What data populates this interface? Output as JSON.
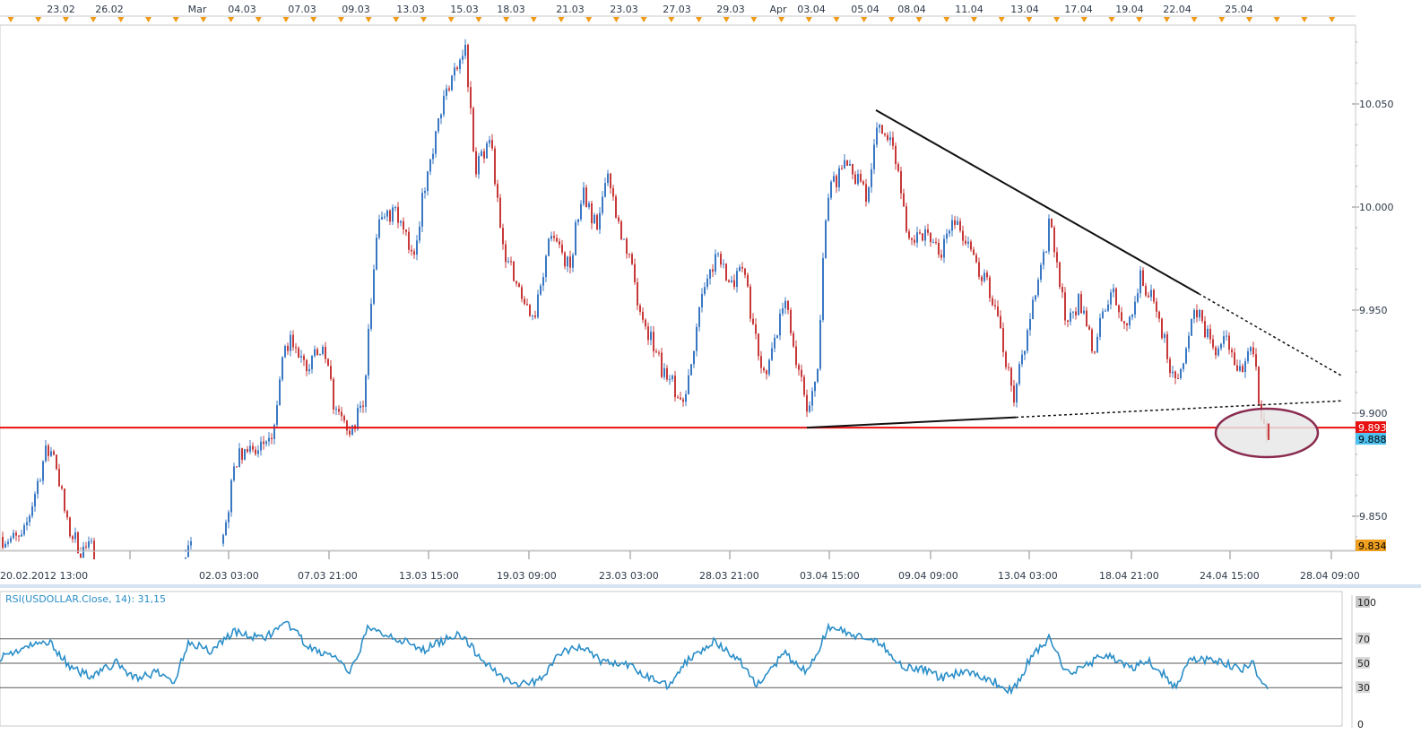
{
  "chart_data": [
    {
      "type": "candlestick",
      "symbol": "USDOLLAR",
      "ylim": [
        9.83,
        10.085
      ],
      "price_ticks": [
        "10.050",
        "10.000",
        "9.950",
        "9.900",
        "9.850"
      ],
      "price_labels": [
        {
          "text": "9.893",
          "value": 9.893,
          "bg": "#e81010",
          "fg": "#ffffff"
        },
        {
          "text": "9.888",
          "value": 9.888,
          "bg": "#4cc0ee",
          "fg": "#000000"
        },
        {
          "text": "9.834",
          "value": 9.834,
          "bg": "#f0a020",
          "fg": "#000000"
        }
      ],
      "top_dates": [
        "23.02",
        "26.02",
        "Mar",
        "04.03",
        "07.03",
        "09.03",
        "13.03",
        "15.03",
        "18.03",
        "21.03",
        "23.03",
        "27.03",
        "29.03",
        "Apr",
        "03.04",
        "05.04",
        "08.04",
        "11.04",
        "13.04",
        "17.04",
        "19.04",
        "22.04",
        "25.04"
      ],
      "bottom_times": [
        "20.02.2012 13:00",
        "02.03 03:00",
        "07.03 21:00",
        "13.03 15:00",
        "19.03 09:00",
        "23.03 03:00",
        "28.03 21:00",
        "03.04 15:00",
        "09.04 09:00",
        "13.04 03:00",
        "18.04 21:00",
        "24.04 15:00",
        "28.04 09:00"
      ],
      "support_level": 9.893,
      "path_anchors": [
        [
          0,
          9.84
        ],
        [
          25,
          9.838
        ],
        [
          50,
          9.88
        ],
        [
          60,
          9.882
        ],
        [
          75,
          9.845
        ],
        [
          90,
          9.834
        ],
        [
          105,
          9.834
        ],
        [
          200,
          9.834
        ],
        [
          245,
          9.834
        ],
        [
          255,
          9.855
        ],
        [
          265,
          9.88
        ],
        [
          300,
          9.884
        ],
        [
          320,
          9.935
        ],
        [
          345,
          9.924
        ],
        [
          360,
          9.93
        ],
        [
          375,
          9.9
        ],
        [
          390,
          9.889
        ],
        [
          405,
          9.905
        ],
        [
          420,
          9.99
        ],
        [
          440,
          10.0
        ],
        [
          460,
          9.975
        ],
        [
          480,
          10.025
        ],
        [
          500,
          10.06
        ],
        [
          518,
          10.08
        ],
        [
          530,
          10.02
        ],
        [
          548,
          10.03
        ],
        [
          560,
          9.98
        ],
        [
          575,
          9.965
        ],
        [
          595,
          9.945
        ],
        [
          615,
          9.99
        ],
        [
          635,
          9.97
        ],
        [
          650,
          10.01
        ],
        [
          665,
          9.99
        ],
        [
          678,
          10.015
        ],
        [
          695,
          9.985
        ],
        [
          715,
          9.95
        ],
        [
          740,
          9.92
        ],
        [
          762,
          9.905
        ],
        [
          780,
          9.95
        ],
        [
          800,
          9.98
        ],
        [
          815,
          9.96
        ],
        [
          830,
          9.97
        ],
        [
          850,
          9.915
        ],
        [
          875,
          9.955
        ],
        [
          900,
          9.9
        ],
        [
          912,
          9.925
        ],
        [
          922,
          10.005
        ],
        [
          945,
          10.025
        ],
        [
          965,
          10.005
        ],
        [
          980,
          10.04
        ],
        [
          1000,
          10.025
        ],
        [
          1010,
          9.99
        ],
        [
          1030,
          9.985
        ],
        [
          1050,
          9.98
        ],
        [
          1065,
          9.995
        ],
        [
          1085,
          9.975
        ],
        [
          1110,
          9.955
        ],
        [
          1130,
          9.905
        ],
        [
          1140,
          9.93
        ],
        [
          1160,
          9.965
        ],
        [
          1172,
          9.995
        ],
        [
          1190,
          9.94
        ],
        [
          1205,
          9.955
        ],
        [
          1218,
          9.93
        ],
        [
          1240,
          9.96
        ],
        [
          1255,
          9.94
        ],
        [
          1272,
          9.965
        ],
        [
          1290,
          9.95
        ],
        [
          1310,
          9.915
        ],
        [
          1335,
          9.95
        ],
        [
          1355,
          9.93
        ],
        [
          1370,
          9.935
        ],
        [
          1385,
          9.92
        ],
        [
          1398,
          9.93
        ],
        [
          1404,
          9.905
        ],
        [
          1415,
          9.888
        ]
      ],
      "annotations": {
        "descending_trendline": {
          "from": [
            "05.04",
            10.047
          ],
          "to": [
            "20.04",
            9.958
          ]
        },
        "rising_trendline": {
          "from": [
            "03.04",
            9.893
          ],
          "to": [
            "13.04",
            9.898
          ]
        },
        "highlight": "ellipse around breakdown near 9.888"
      }
    },
    {
      "type": "line",
      "title": "RSI(USDOLLAR.Close, 14): 31,15",
      "ylim": [
        0,
        100
      ],
      "levels": [
        "100",
        "70",
        "50",
        "30",
        "0"
      ],
      "level_values": [
        100,
        70,
        50,
        30,
        0
      ],
      "last_value": 31.15,
      "path_anchors": [
        [
          0,
          55
        ],
        [
          25,
          62
        ],
        [
          55,
          68
        ],
        [
          80,
          45
        ],
        [
          100,
          40
        ],
        [
          130,
          50
        ],
        [
          150,
          38
        ],
        [
          175,
          42
        ],
        [
          195,
          35
        ],
        [
          210,
          68
        ],
        [
          235,
          60
        ],
        [
          260,
          76
        ],
        [
          290,
          70
        ],
        [
          322,
          82
        ],
        [
          345,
          62
        ],
        [
          375,
          55
        ],
        [
          390,
          40
        ],
        [
          410,
          78
        ],
        [
          440,
          72
        ],
        [
          470,
          60
        ],
        [
          512,
          75
        ],
        [
          535,
          55
        ],
        [
          558,
          40
        ],
        [
          580,
          32
        ],
        [
          600,
          35
        ],
        [
          625,
          58
        ],
        [
          650,
          64
        ],
        [
          670,
          52
        ],
        [
          700,
          48
        ],
        [
          720,
          40
        ],
        [
          745,
          32
        ],
        [
          770,
          55
        ],
        [
          795,
          68
        ],
        [
          825,
          52
        ],
        [
          845,
          32
        ],
        [
          875,
          58
        ],
        [
          900,
          42
        ],
        [
          925,
          80
        ],
        [
          955,
          72
        ],
        [
          985,
          65
        ],
        [
          1005,
          48
        ],
        [
          1030,
          45
        ],
        [
          1050,
          38
        ],
        [
          1075,
          44
        ],
        [
          1100,
          38
        ],
        [
          1130,
          27
        ],
        [
          1150,
          55
        ],
        [
          1170,
          70
        ],
        [
          1190,
          42
        ],
        [
          1210,
          48
        ],
        [
          1235,
          58
        ],
        [
          1260,
          45
        ],
        [
          1280,
          52
        ],
        [
          1300,
          40
        ],
        [
          1310,
          30
        ],
        [
          1330,
          55
        ],
        [
          1350,
          52
        ],
        [
          1370,
          49
        ],
        [
          1385,
          44
        ],
        [
          1398,
          50
        ],
        [
          1404,
          36
        ],
        [
          1415,
          31
        ]
      ]
    }
  ],
  "colors": {
    "up": "#3a78c4",
    "down": "#c83838",
    "support": "#e81010",
    "trend": "#111111",
    "rsi": "#2a8ec8",
    "ellipse_stroke": "#8a2b4f",
    "ellipse_fill": "#e8e8e8",
    "axis_text": "#2e3a4a"
  }
}
